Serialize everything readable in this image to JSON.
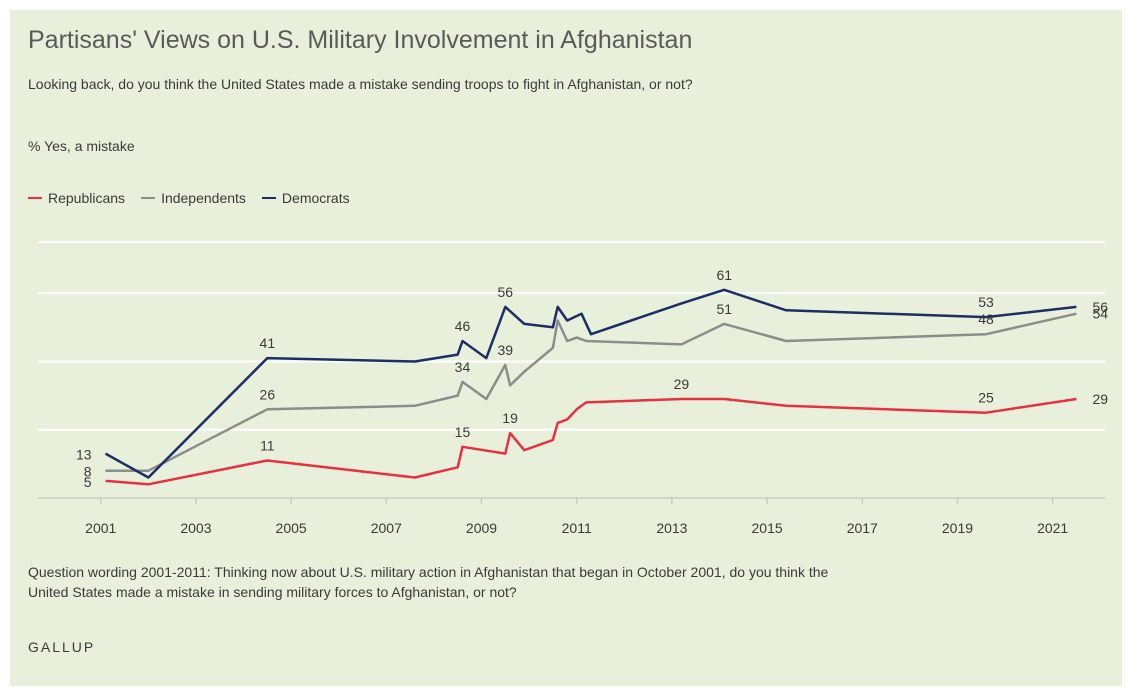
{
  "header": {
    "title": "Partisans' Views on U.S. Military Involvement in Afghanistan",
    "subtitle": "Looking back, do you think the United States made a mistake sending troops to fight in Afghanistan, or not?",
    "measure": "% Yes, a mistake"
  },
  "footer": {
    "note": "Question wording 2001-2011: Thinking now about U.S. military action in Afghanistan that began in October 2001, do you think the United States made a mistake in sending military forces to Afghanistan, or not?",
    "source": "GALLUP"
  },
  "colors": {
    "Republicans": "#e8303f",
    "Independents": "#8c8c8c",
    "Democrats": "#1b2e66",
    "background": "#e8f0dc",
    "grid": "#ffffff",
    "axis": "#c8ccc2"
  },
  "chart_data": {
    "type": "line",
    "title": "Partisans' Views on U.S. Military Involvement in Afghanistan",
    "xlabel": "",
    "ylabel": "",
    "x_ticks": [
      "2001",
      "2003",
      "2005",
      "2007",
      "2009",
      "2011",
      "2013",
      "2015",
      "2017",
      "2019",
      "2021"
    ],
    "xlim": [
      2000.9,
      2022.1
    ],
    "ylim": [
      0,
      75
    ],
    "grid": true,
    "legend_position": "top-left",
    "series": [
      {
        "name": "Republicans",
        "x": [
          2001.1,
          2002.0,
          2004.5,
          2007.6,
          2008.5,
          2008.6,
          2009.5,
          2009.6,
          2009.9,
          2010.5,
          2010.6,
          2010.8,
          2011.0,
          2011.2,
          2013.2,
          2014.1,
          2015.4,
          2019.6,
          2021.5
        ],
        "y": [
          5,
          4,
          11,
          6,
          9,
          15,
          13,
          19,
          14,
          17,
          22,
          23,
          26,
          28,
          29,
          29,
          27,
          25,
          29
        ],
        "labels": [
          {
            "i": 0,
            "text": "5"
          },
          {
            "i": 2,
            "text": "11"
          },
          {
            "i": 5,
            "text": "15"
          },
          {
            "i": 7,
            "text": "19"
          },
          {
            "i": 14,
            "text": "29"
          },
          {
            "i": 17,
            "text": "25"
          },
          {
            "i": 18,
            "text": "29"
          }
        ]
      },
      {
        "name": "Independents",
        "x": [
          2001.1,
          2002.0,
          2004.5,
          2007.6,
          2008.5,
          2008.6,
          2009.1,
          2009.5,
          2009.6,
          2009.9,
          2010.5,
          2010.6,
          2010.8,
          2011.0,
          2011.2,
          2013.2,
          2014.1,
          2015.4,
          2019.6,
          2021.5
        ],
        "y": [
          8,
          8,
          26,
          27,
          30,
          34,
          29,
          39,
          33,
          37,
          44,
          52,
          46,
          47,
          46,
          45,
          51,
          46,
          48,
          54
        ],
        "labels": [
          {
            "i": 0,
            "text": "8"
          },
          {
            "i": 2,
            "text": "26"
          },
          {
            "i": 5,
            "text": "34"
          },
          {
            "i": 7,
            "text": "39"
          },
          {
            "i": 16,
            "text": "51"
          },
          {
            "i": 18,
            "text": "48"
          },
          {
            "i": 19,
            "text": "54"
          }
        ]
      },
      {
        "name": "Democrats",
        "x": [
          2001.1,
          2002.0,
          2004.5,
          2007.6,
          2008.5,
          2008.6,
          2009.1,
          2009.5,
          2009.9,
          2010.5,
          2010.6,
          2010.8,
          2011.1,
          2011.3,
          2013.2,
          2014.1,
          2015.4,
          2019.6,
          2021.5
        ],
        "y": [
          13,
          6,
          41,
          40,
          42,
          46,
          41,
          56,
          51,
          50,
          56,
          52,
          54,
          48,
          57,
          61,
          55,
          53,
          56
        ],
        "labels": [
          {
            "i": 0,
            "text": "13"
          },
          {
            "i": 2,
            "text": "41"
          },
          {
            "i": 5,
            "text": "46"
          },
          {
            "i": 7,
            "text": "56"
          },
          {
            "i": 15,
            "text": "61"
          },
          {
            "i": 17,
            "text": "53"
          },
          {
            "i": 18,
            "text": "56"
          }
        ]
      }
    ]
  }
}
